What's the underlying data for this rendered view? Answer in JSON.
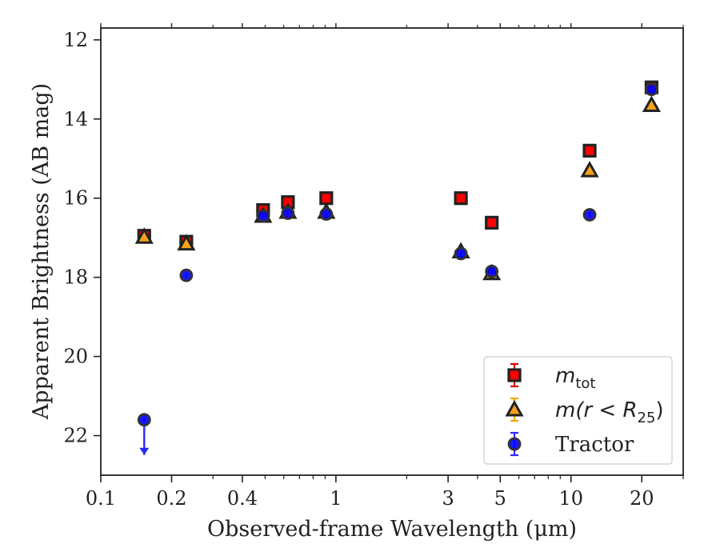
{
  "chart_data": {
    "type": "scatter",
    "title": "",
    "xlabel": "Observed-frame Wavelength (μm)",
    "ylabel": "Apparent Brightness (AB mag)",
    "xscale": "log",
    "xlim": [
      0.1,
      30
    ],
    "ylim": [
      23,
      11.7
    ],
    "y_inverted": true,
    "x_ticks": [
      "0.1",
      "0.2",
      "0.4",
      "1",
      "3",
      "5",
      "10",
      "20"
    ],
    "y_ticks": [
      "12",
      "14",
      "16",
      "18",
      "20",
      "22"
    ],
    "grid": false,
    "legend_position": "lower-right",
    "series": [
      {
        "name": "m_tot",
        "legend_label": "m",
        "legend_sub": "tot",
        "marker": "square",
        "color": "#ff0000",
        "edge": "#222222",
        "errcolor": "#e00000",
        "x": [
          0.153,
          0.231,
          0.49,
          0.625,
          0.91,
          3.4,
          4.6,
          12.0,
          22.0
        ],
        "y": [
          16.95,
          17.1,
          16.3,
          16.1,
          16.0,
          16.0,
          16.62,
          14.8,
          13.2
        ]
      },
      {
        "name": "m(r < R25)",
        "legend_label": "m(r < R",
        "legend_sub": "25",
        "legend_tail": ")",
        "marker": "triangle",
        "color": "#f5a11a",
        "edge": "#222222",
        "errcolor": "#f0a800",
        "x": [
          0.153,
          0.231,
          0.49,
          0.625,
          0.91,
          3.4,
          4.6,
          12.0,
          22.0
        ],
        "y": [
          16.98,
          17.15,
          16.45,
          16.35,
          16.35,
          17.35,
          17.9,
          15.3,
          13.65
        ]
      },
      {
        "name": "Tractor",
        "marker": "circle",
        "color": "#0000ff",
        "edge": "#333333",
        "errcolor": "#2a2aff",
        "x": [
          0.153,
          0.231,
          0.49,
          0.625,
          0.91,
          3.4,
          4.6,
          12.0,
          22.0
        ],
        "y": [
          21.6,
          17.95,
          16.45,
          16.38,
          16.4,
          17.4,
          17.85,
          16.42,
          13.25
        ],
        "upper_limits": [
          true,
          false,
          false,
          false,
          false,
          false,
          false,
          false,
          false
        ]
      }
    ]
  }
}
